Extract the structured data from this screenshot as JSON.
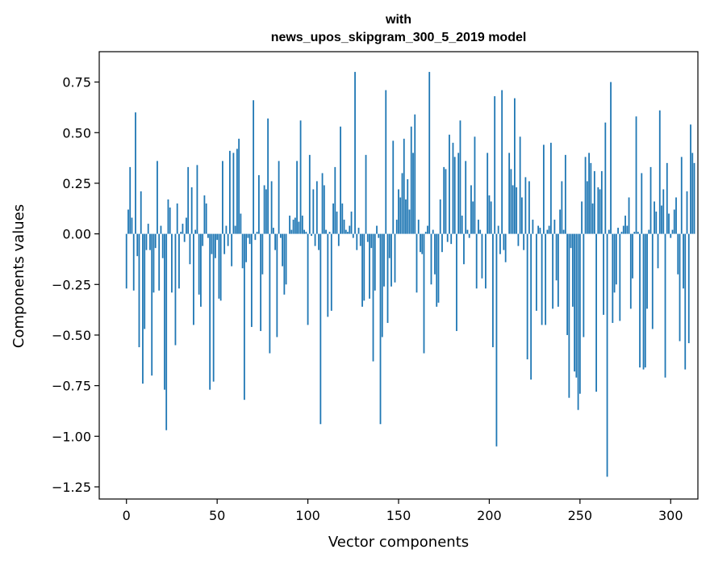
{
  "chart_data": {
    "type": "bar",
    "title_lines": [
      "with",
      "news_upos_skipgram_300_5_2019 model"
    ],
    "xlabel": "Vector components",
    "ylabel": "Components values",
    "xlim": [
      -15,
      315
    ],
    "ylim": [
      -1.31,
      0.9
    ],
    "x_ticks": [
      0,
      50,
      100,
      150,
      200,
      250,
      300
    ],
    "x_tick_labels": [
      "0",
      "50",
      "100",
      "150",
      "200",
      "250",
      "300"
    ],
    "y_ticks": [
      0.75,
      0.5,
      0.25,
      0.0,
      -0.25,
      -0.5,
      -0.75,
      -1.0,
      -1.25
    ],
    "y_tick_labels": [
      "0.75",
      "0.50",
      "0.25",
      "0.00",
      "−0.25",
      "−0.50",
      "−0.75",
      "−1.00",
      "−1.25"
    ],
    "bar_color": "#1f77b4",
    "grid": false,
    "values": [
      -0.27,
      0.12,
      0.33,
      0.08,
      -0.28,
      0.6,
      -0.11,
      -0.56,
      0.21,
      -0.74,
      -0.47,
      -0.08,
      0.05,
      -0.08,
      -0.7,
      -0.29,
      -0.07,
      0.36,
      -0.28,
      0.04,
      -0.12,
      -0.77,
      -0.97,
      0.17,
      0.13,
      -0.29,
      0.0,
      -0.55,
      0.15,
      -0.27,
      0.01,
      0.05,
      -0.04,
      0.08,
      0.33,
      -0.15,
      0.23,
      -0.45,
      0.02,
      0.34,
      -0.3,
      -0.36,
      -0.06,
      0.19,
      0.15,
      -0.02,
      -0.77,
      -0.1,
      -0.73,
      -0.12,
      -0.03,
      -0.32,
      -0.33,
      0.36,
      -0.1,
      0.04,
      -0.06,
      0.41,
      -0.16,
      0.4,
      0.04,
      0.42,
      0.47,
      0.1,
      -0.17,
      -0.82,
      -0.14,
      -0.02,
      -0.05,
      -0.46,
      0.66,
      -0.03,
      0.01,
      0.29,
      -0.48,
      -0.2,
      0.24,
      0.22,
      0.57,
      -0.59,
      0.26,
      0.03,
      -0.08,
      -0.51,
      0.36,
      -0.02,
      -0.16,
      -0.3,
      -0.25,
      0.0,
      0.09,
      0.02,
      0.07,
      0.08,
      0.36,
      0.06,
      0.56,
      0.09,
      0.02,
      0.01,
      -0.45,
      0.39,
      -0.01,
      0.22,
      -0.06,
      0.26,
      -0.08,
      -0.94,
      0.3,
      0.24,
      0.02,
      -0.41,
      0.01,
      -0.38,
      0.15,
      0.33,
      0.11,
      -0.06,
      0.53,
      0.15,
      0.07,
      0.02,
      0.01,
      0.04,
      0.11,
      -0.02,
      0.8,
      -0.08,
      0.03,
      -0.06,
      -0.36,
      -0.33,
      0.39,
      -0.04,
      -0.32,
      -0.07,
      -0.63,
      -0.28,
      0.04,
      -0.02,
      -0.94,
      -0.51,
      -0.26,
      0.71,
      -0.44,
      -0.12,
      -0.26,
      0.46,
      -0.24,
      0.07,
      0.22,
      0.18,
      0.3,
      0.47,
      0.17,
      0.27,
      0.12,
      0.53,
      0.4,
      0.59,
      -0.29,
      0.07,
      -0.09,
      -0.1,
      -0.59,
      0.01,
      0.04,
      0.8,
      -0.25,
      0.02,
      -0.2,
      -0.36,
      -0.34,
      0.17,
      -0.09,
      0.33,
      0.32,
      -0.04,
      0.49,
      -0.05,
      0.45,
      0.38,
      -0.48,
      0.4,
      0.56,
      0.09,
      -0.15,
      0.36,
      0.02,
      -0.02,
      0.24,
      0.16,
      0.48,
      -0.27,
      0.07,
      0.02,
      -0.22,
      0.0,
      -0.27,
      0.4,
      0.19,
      0.16,
      -0.56,
      0.68,
      -1.05,
      0.04,
      -0.1,
      0.71,
      -0.08,
      -0.14,
      0.0,
      0.4,
      0.32,
      0.24,
      0.67,
      0.23,
      -0.06,
      0.48,
      0.18,
      -0.08,
      0.28,
      -0.62,
      0.26,
      -0.72,
      0.07,
      0.0,
      -0.38,
      0.04,
      0.03,
      -0.45,
      0.44,
      -0.45,
      0.02,
      0.04,
      0.45,
      -0.37,
      0.07,
      -0.23,
      -0.36,
      0.12,
      0.26,
      0.02,
      0.39,
      -0.5,
      -0.81,
      -0.07,
      -0.36,
      -0.68,
      -0.71,
      -0.87,
      -0.79,
      0.16,
      -0.51,
      0.38,
      0.26,
      0.4,
      0.35,
      0.15,
      0.31,
      -0.78,
      0.23,
      0.22,
      0.31,
      -0.4,
      0.55,
      -1.2,
      0.02,
      0.75,
      -0.44,
      -0.29,
      -0.25,
      0.03,
      -0.43,
      0.01,
      0.04,
      0.09,
      0.04,
      0.18,
      -0.37,
      -0.22,
      0.01,
      0.58,
      0.01,
      -0.66,
      0.3,
      -0.67,
      -0.66,
      -0.37,
      0.02,
      0.33,
      -0.47,
      0.16,
      0.11,
      -0.17,
      0.61,
      0.14,
      0.22,
      -0.71,
      0.35,
      0.1,
      -0.02,
      0.02,
      0.12,
      0.18,
      -0.2,
      -0.53,
      0.38,
      -0.27,
      -0.67,
      0.21,
      -0.54,
      0.54,
      0.4,
      0.35
    ]
  }
}
